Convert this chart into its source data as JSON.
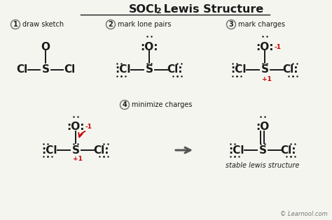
{
  "bg_color": "#f5f5f0",
  "text_color": "#1a1a1a",
  "red_color": "#cc0000",
  "step_circle_color": "#777777",
  "figsize": [
    4.74,
    3.15
  ],
  "dpi": 100,
  "learnool_text": "© Learnool.com",
  "step1_label": "draw sketch",
  "step2_label": "mark lone pairs",
  "step3_label": "mark charges",
  "step4_label": "minimize charges",
  "stable_label": "stable lewis structure"
}
